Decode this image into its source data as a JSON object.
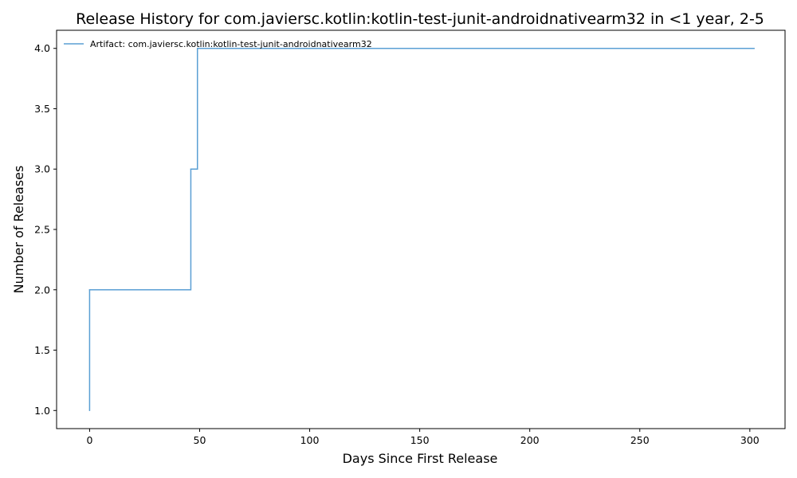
{
  "chart_data": {
    "type": "line",
    "title": "Release History for com.javiersc.kotlin:kotlin-test-junit-androidnativearm32 in <1 year, 2-5",
    "xlabel": "Days Since First Release",
    "ylabel": "Number of Releases",
    "xlim": [
      -15,
      316
    ],
    "ylim": [
      0.85,
      4.15
    ],
    "xticks": [
      0,
      50,
      100,
      150,
      200,
      250,
      300
    ],
    "yticks": [
      1.0,
      1.5,
      2.0,
      2.5,
      3.0,
      3.5,
      4.0
    ],
    "xtick_labels": [
      "0",
      "50",
      "100",
      "150",
      "200",
      "250",
      "300"
    ],
    "ytick_labels": [
      "1.0",
      "1.5",
      "2.0",
      "2.5",
      "3.0",
      "3.5",
      "4.0"
    ],
    "grid": false,
    "legend_position": "top-left",
    "step": "post",
    "series": [
      {
        "name": "Artifact: com.javiersc.kotlin:kotlin-test-junit-androidnativearm32",
        "color": "#5a9fd4",
        "x": [
          0,
          0,
          46,
          49,
          302
        ],
        "y": [
          1,
          2,
          3,
          4,
          4
        ]
      }
    ]
  }
}
